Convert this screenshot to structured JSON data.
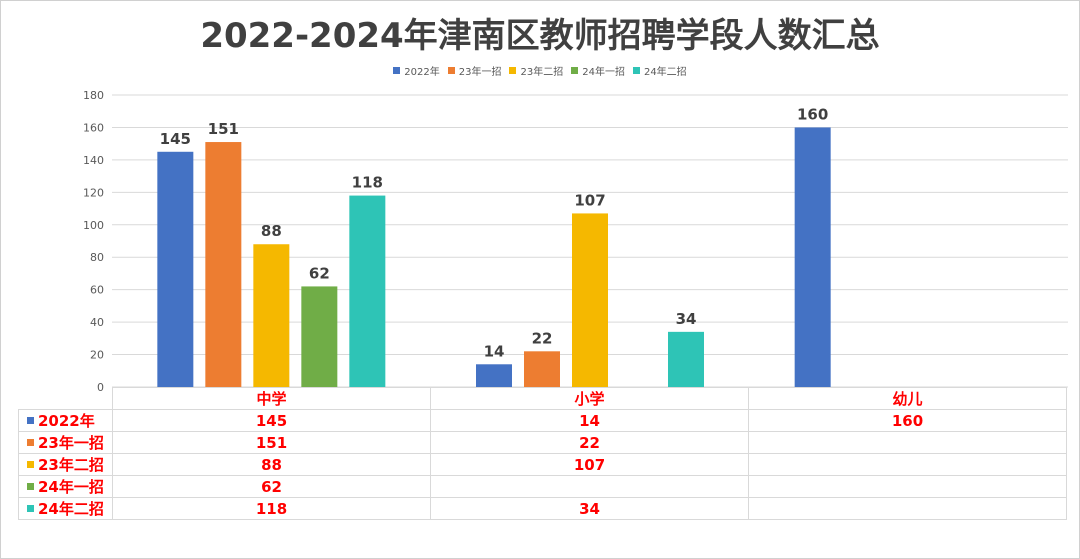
{
  "chart_data": {
    "type": "bar",
    "title": "2022-2024年津南区教师招聘学段人数汇总",
    "categories": [
      "中学",
      "小学",
      "幼儿"
    ],
    "series": [
      {
        "name": "2022年",
        "color": "#4472c4",
        "values": [
          145,
          14,
          160
        ]
      },
      {
        "name": "23年一招",
        "color": "#ed7d31",
        "values": [
          151,
          22,
          null
        ]
      },
      {
        "name": "23年二招",
        "color": "#f5b800",
        "values": [
          88,
          107,
          null
        ]
      },
      {
        "name": "24年一招",
        "color": "#70ad47",
        "values": [
          62,
          null,
          null
        ]
      },
      {
        "name": "24年二招",
        "color": "#2ec4b6",
        "values": [
          118,
          34,
          null
        ]
      }
    ],
    "ylim": [
      0,
      180
    ],
    "yticks": [
      0,
      20,
      40,
      60,
      80,
      100,
      120,
      140,
      160,
      180
    ],
    "grid": true,
    "legend_position": "top",
    "data_table": true
  }
}
